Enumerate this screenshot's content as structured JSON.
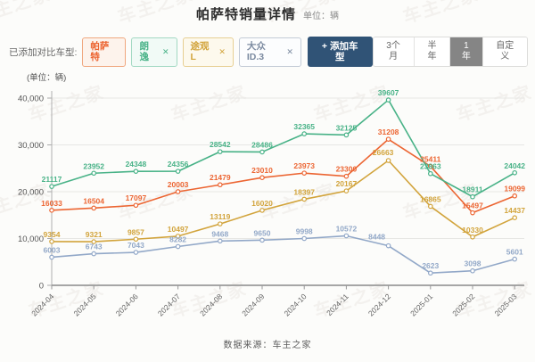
{
  "watermark": "车主之家",
  "header": {
    "title": "帕萨特销量详情",
    "unit_label": "单位：辆"
  },
  "toolbar": {
    "compare_label": "已添加对比车型:",
    "chips": [
      {
        "id": "passat",
        "label": "帕萨特",
        "color": "#ec6532",
        "border": "#f0a77f",
        "bg": "#fdf3ec",
        "closable": false
      },
      {
        "id": "lavida",
        "label": "朗逸",
        "color": "#48b287",
        "border": "#a3d9c3",
        "bg": "#f1faf6",
        "closable": true
      },
      {
        "id": "tiguan-l",
        "label": "途观L",
        "color": "#d2a43c",
        "border": "#e7cf93",
        "bg": "#fdf9ed",
        "closable": true
      },
      {
        "id": "vw-id3",
        "label": "大众ID.3",
        "color": "#7b8aa0",
        "border": "#c3cbd6",
        "bg": "#fcfdfe",
        "closable": true
      }
    ],
    "close_icon": "✕",
    "add_button": {
      "label": "+ 添加车型",
      "bg": "#305376",
      "color": "#ffffff"
    },
    "range_buttons": [
      {
        "id": "3m",
        "label": "3个月",
        "active": false
      },
      {
        "id": "6m",
        "label": "半年",
        "active": false
      },
      {
        "id": "1y",
        "label": "1年",
        "active": true
      },
      {
        "id": "custom",
        "label": "自定义",
        "active": false
      }
    ],
    "active_range_bg": "#858585"
  },
  "chart_data": {
    "type": "line",
    "title": "帕萨特销量详情",
    "unit_label": "(单位：辆)",
    "xlabel": "",
    "ylabel": "",
    "ylim": [
      0,
      40000
    ],
    "yticks": [
      "0",
      "10,000",
      "20,000",
      "30,000",
      "40,000"
    ],
    "grid": true,
    "legend_position": "none",
    "x": [
      "2024-04",
      "2024-05",
      "2024-06",
      "2024-07",
      "2024-08",
      "2024-09",
      "2024-10",
      "2024-11",
      "2024-12",
      "2025-01",
      "2025-02",
      "2025-03"
    ],
    "series": [
      {
        "name": "帕萨特",
        "color": "#ec6532",
        "values": [
          16033,
          16504,
          17097,
          20003,
          21479,
          23010,
          23973,
          23300,
          31208,
          25411,
          15497,
          19099
        ]
      },
      {
        "name": "朗逸",
        "color": "#48b287",
        "values": [
          21117,
          23952,
          24348,
          24356,
          28542,
          28486,
          32365,
          32125,
          39607,
          23863,
          18911,
          24042
        ]
      },
      {
        "name": "途观L",
        "color": "#d2a43c",
        "values": [
          9354,
          9321,
          9857,
          10497,
          13119,
          16020,
          18397,
          20167,
          26663,
          16865,
          10330,
          14437
        ]
      },
      {
        "name": "大众ID.3",
        "color": "#92a8c8",
        "values": [
          6003,
          6743,
          7043,
          8282,
          9468,
          9650,
          9998,
          10572,
          8448,
          2623,
          3098,
          5601
        ]
      }
    ]
  },
  "footer": {
    "source": "数据来源：车主之家"
  }
}
